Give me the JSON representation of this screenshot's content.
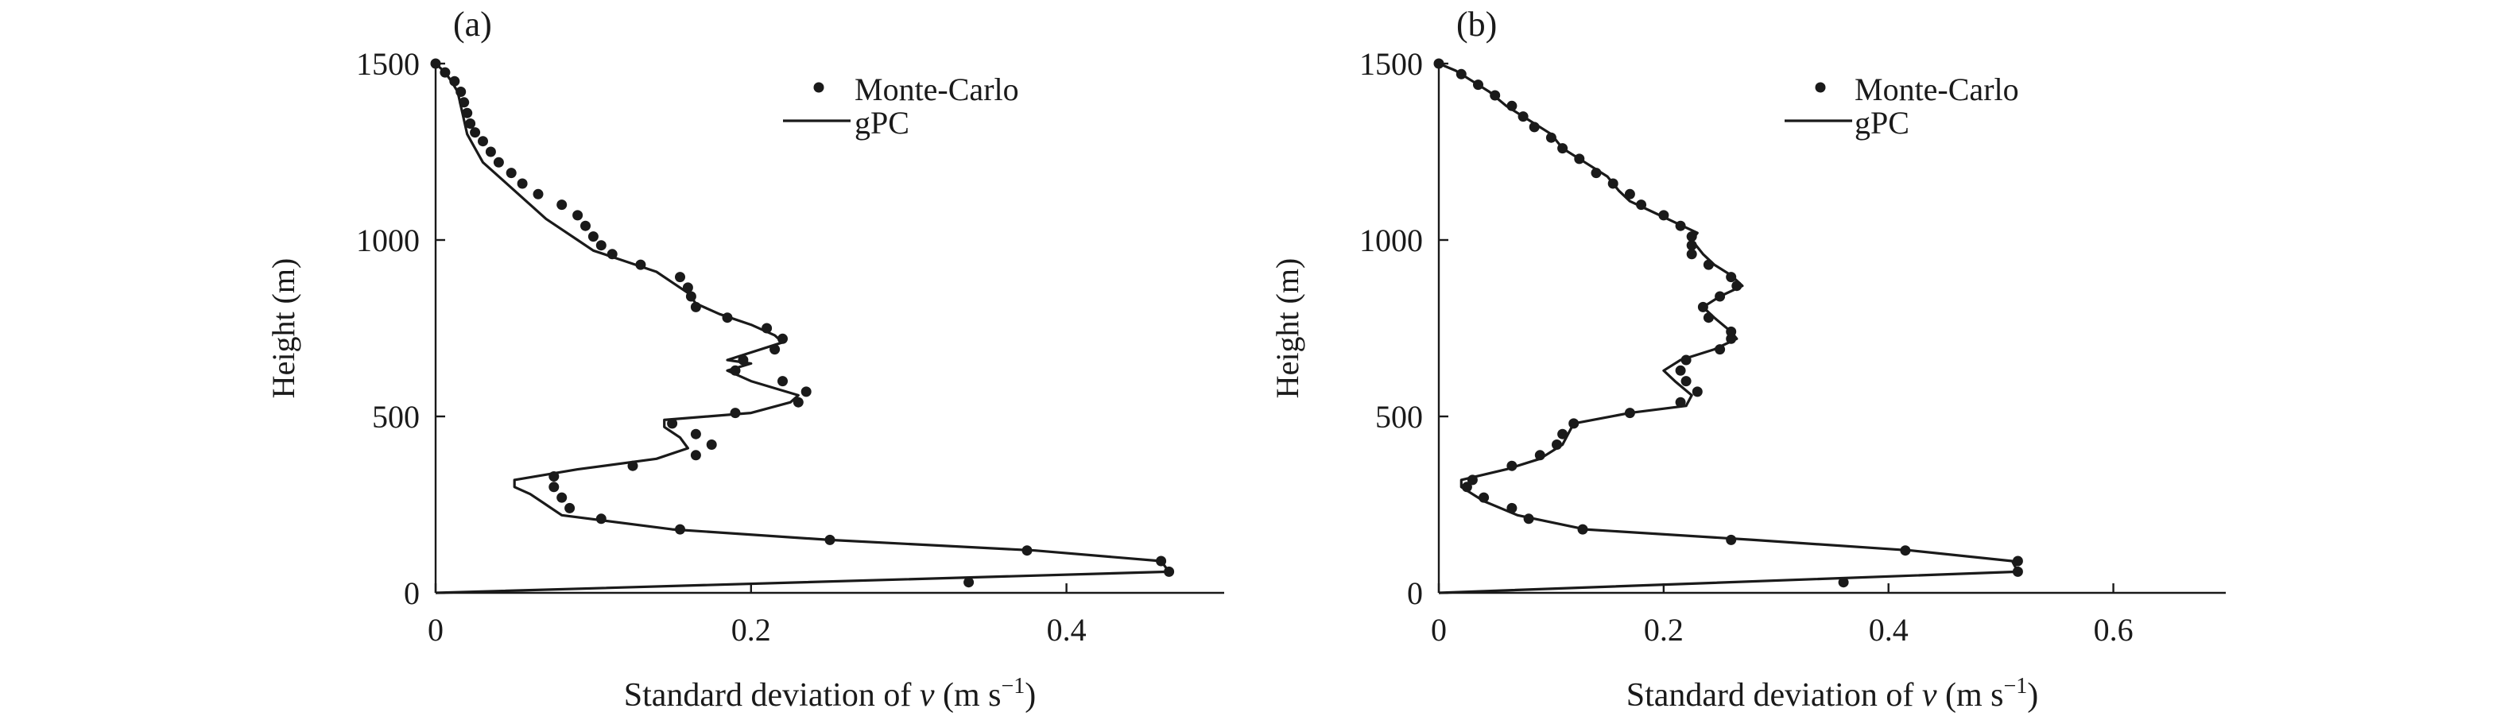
{
  "colors": {
    "ink": "#1a1a1a",
    "background": "#ffffff"
  },
  "chart_data": [
    {
      "type": "scatter",
      "panel_label": "(a)",
      "xlabel_prefix": "Standard deviation of ",
      "xlabel_var": "v",
      "xlabel_unit_open": " (m s",
      "xlabel_sup": "−1",
      "xlabel_unit_close": ")",
      "ylabel": "Height (m)",
      "xlim": [
        0,
        0.5
      ],
      "ylim": [
        0,
        1500
      ],
      "x_ticks": [
        0,
        0.2,
        0.4
      ],
      "x_tick_labels": [
        "0",
        "0.2",
        "0.4"
      ],
      "y_ticks": [
        0,
        500,
        1000,
        1500
      ],
      "y_tick_labels": [
        "0",
        "500",
        "1000",
        "1500"
      ],
      "legend_position": "top-right",
      "legend": {
        "scatter_label": "Monte-Carlo",
        "line_label": "gPC"
      },
      "series": [
        {
          "name": "gPC",
          "kind": "line",
          "points": [
            [
              0,
              0
            ],
            [
              0.465,
              60
            ],
            [
              0.46,
              90
            ],
            [
              0.38,
              120
            ],
            [
              0.25,
              150
            ],
            [
              0.15,
              180
            ],
            [
              0.08,
              220
            ],
            [
              0.07,
              250
            ],
            [
              0.06,
              280
            ],
            [
              0.05,
              300
            ],
            [
              0.05,
              320
            ],
            [
              0.09,
              350
            ],
            [
              0.14,
              380
            ],
            [
              0.16,
              410
            ],
            [
              0.155,
              440
            ],
            [
              0.145,
              470
            ],
            [
              0.145,
              490
            ],
            [
              0.2,
              510
            ],
            [
              0.225,
              540
            ],
            [
              0.23,
              560
            ],
            [
              0.2,
              600
            ],
            [
              0.185,
              630
            ],
            [
              0.2,
              650
            ],
            [
              0.185,
              660
            ],
            [
              0.22,
              710
            ],
            [
              0.215,
              730
            ],
            [
              0.2,
              760
            ],
            [
              0.18,
              790
            ],
            [
              0.165,
              820
            ],
            [
              0.16,
              850
            ],
            [
              0.15,
              880
            ],
            [
              0.14,
              910
            ],
            [
              0.12,
              940
            ],
            [
              0.1,
              970
            ],
            [
              0.09,
              1000
            ],
            [
              0.08,
              1030
            ],
            [
              0.07,
              1060
            ],
            [
              0.06,
              1100
            ],
            [
              0.05,
              1140
            ],
            [
              0.04,
              1180
            ],
            [
              0.03,
              1220
            ],
            [
              0.025,
              1260
            ],
            [
              0.02,
              1300
            ],
            [
              0.018,
              1340
            ],
            [
              0.016,
              1380
            ],
            [
              0.014,
              1420
            ],
            [
              0.01,
              1450
            ],
            [
              0.006,
              1475
            ],
            [
              0,
              1500
            ]
          ]
        },
        {
          "name": "Monte-Carlo",
          "kind": "scatter",
          "points": [
            [
              0.338,
              30
            ],
            [
              0.465,
              60
            ],
            [
              0.46,
              90
            ],
            [
              0.375,
              120
            ],
            [
              0.25,
              150
            ],
            [
              0.155,
              180
            ],
            [
              0.105,
              210
            ],
            [
              0.085,
              240
            ],
            [
              0.08,
              270
            ],
            [
              0.075,
              300
            ],
            [
              0.075,
              330
            ],
            [
              0.125,
              360
            ],
            [
              0.165,
              390
            ],
            [
              0.175,
              420
            ],
            [
              0.165,
              450
            ],
            [
              0.15,
              480
            ],
            [
              0.19,
              510
            ],
            [
              0.23,
              540
            ],
            [
              0.235,
              570
            ],
            [
              0.22,
              600
            ],
            [
              0.19,
              630
            ],
            [
              0.195,
              660
            ],
            [
              0.215,
              690
            ],
            [
              0.22,
              720
            ],
            [
              0.21,
              750
            ],
            [
              0.185,
              780
            ],
            [
              0.165,
              810
            ],
            [
              0.162,
              840
            ],
            [
              0.16,
              865
            ],
            [
              0.155,
              895
            ],
            [
              0.13,
              930
            ],
            [
              0.112,
              960
            ],
            [
              0.105,
              985
            ],
            [
              0.1,
              1010
            ],
            [
              0.095,
              1040
            ],
            [
              0.09,
              1070
            ],
            [
              0.08,
              1100
            ],
            [
              0.065,
              1130
            ],
            [
              0.055,
              1160
            ],
            [
              0.048,
              1190
            ],
            [
              0.04,
              1220
            ],
            [
              0.035,
              1250
            ],
            [
              0.03,
              1280
            ],
            [
              0.025,
              1305
            ],
            [
              0.022,
              1330
            ],
            [
              0.02,
              1360
            ],
            [
              0.018,
              1390
            ],
            [
              0.016,
              1420
            ],
            [
              0.012,
              1450
            ],
            [
              0.006,
              1475
            ],
            [
              0,
              1500
            ]
          ]
        }
      ]
    },
    {
      "type": "scatter",
      "panel_label": "(b)",
      "xlabel_prefix": "Standard deviation of ",
      "xlabel_var": "v",
      "xlabel_unit_open": " (m s",
      "xlabel_sup": "−1",
      "xlabel_unit_close": ")",
      "ylabel": "Height (m)",
      "xlim": [
        0,
        0.7
      ],
      "ylim": [
        0,
        1500
      ],
      "x_ticks": [
        0,
        0.2,
        0.4,
        0.6
      ],
      "x_tick_labels": [
        "0",
        "0.2",
        "0.4",
        "0.6"
      ],
      "y_ticks": [
        0,
        500,
        1000,
        1500
      ],
      "y_tick_labels": [
        "0",
        "500",
        "1000",
        "1500"
      ],
      "legend_position": "top-right",
      "legend": {
        "scatter_label": "Monte-Carlo",
        "line_label": "gPC"
      },
      "series": [
        {
          "name": "gPC",
          "kind": "line",
          "points": [
            [
              0,
              0
            ],
            [
              0.515,
              60
            ],
            [
              0.51,
              90
            ],
            [
              0.42,
              120
            ],
            [
              0.28,
              150
            ],
            [
              0.13,
              180
            ],
            [
              0.07,
              220
            ],
            [
              0.04,
              260
            ],
            [
              0.02,
              300
            ],
            [
              0.02,
              320
            ],
            [
              0.06,
              350
            ],
            [
              0.09,
              380
            ],
            [
              0.11,
              420
            ],
            [
              0.12,
              480
            ],
            [
              0.17,
              510
            ],
            [
              0.22,
              530
            ],
            [
              0.225,
              560
            ],
            [
              0.21,
              600
            ],
            [
              0.2,
              630
            ],
            [
              0.215,
              660
            ],
            [
              0.245,
              690
            ],
            [
              0.265,
              720
            ],
            [
              0.26,
              740
            ],
            [
              0.245,
              780
            ],
            [
              0.235,
              810
            ],
            [
              0.25,
              840
            ],
            [
              0.27,
              870
            ],
            [
              0.26,
              900
            ],
            [
              0.245,
              930
            ],
            [
              0.235,
              960
            ],
            [
              0.225,
              1000
            ],
            [
              0.23,
              1020
            ],
            [
              0.21,
              1050
            ],
            [
              0.19,
              1080
            ],
            [
              0.17,
              1110
            ],
            [
              0.16,
              1140
            ],
            [
              0.15,
              1180
            ],
            [
              0.13,
              1220
            ],
            [
              0.11,
              1260
            ],
            [
              0.1,
              1300
            ],
            [
              0.08,
              1340
            ],
            [
              0.06,
              1380
            ],
            [
              0.045,
              1420
            ],
            [
              0.03,
              1450
            ],
            [
              0.015,
              1480
            ],
            [
              0,
              1500
            ]
          ]
        },
        {
          "name": "Monte-Carlo",
          "kind": "scatter",
          "points": [
            [
              0.36,
              30
            ],
            [
              0.515,
              60
            ],
            [
              0.515,
              90
            ],
            [
              0.415,
              120
            ],
            [
              0.26,
              150
            ],
            [
              0.128,
              180
            ],
            [
              0.08,
              210
            ],
            [
              0.065,
              240
            ],
            [
              0.04,
              270
            ],
            [
              0.025,
              300
            ],
            [
              0.03,
              320
            ],
            [
              0.065,
              360
            ],
            [
              0.09,
              390
            ],
            [
              0.105,
              420
            ],
            [
              0.11,
              450
            ],
            [
              0.12,
              480
            ],
            [
              0.17,
              510
            ],
            [
              0.215,
              540
            ],
            [
              0.23,
              570
            ],
            [
              0.22,
              600
            ],
            [
              0.215,
              630
            ],
            [
              0.22,
              660
            ],
            [
              0.25,
              690
            ],
            [
              0.26,
              720
            ],
            [
              0.26,
              740
            ],
            [
              0.24,
              780
            ],
            [
              0.235,
              810
            ],
            [
              0.25,
              840
            ],
            [
              0.265,
              870
            ],
            [
              0.26,
              895
            ],
            [
              0.24,
              930
            ],
            [
              0.225,
              960
            ],
            [
              0.225,
              985
            ],
            [
              0.225,
              1010
            ],
            [
              0.215,
              1040
            ],
            [
              0.2,
              1070
            ],
            [
              0.18,
              1100
            ],
            [
              0.17,
              1130
            ],
            [
              0.155,
              1160
            ],
            [
              0.14,
              1190
            ],
            [
              0.125,
              1230
            ],
            [
              0.11,
              1260
            ],
            [
              0.1,
              1290
            ],
            [
              0.085,
              1320
            ],
            [
              0.075,
              1350
            ],
            [
              0.065,
              1380
            ],
            [
              0.05,
              1410
            ],
            [
              0.035,
              1440
            ],
            [
              0.02,
              1470
            ],
            [
              0,
              1500
            ]
          ]
        }
      ]
    }
  ]
}
